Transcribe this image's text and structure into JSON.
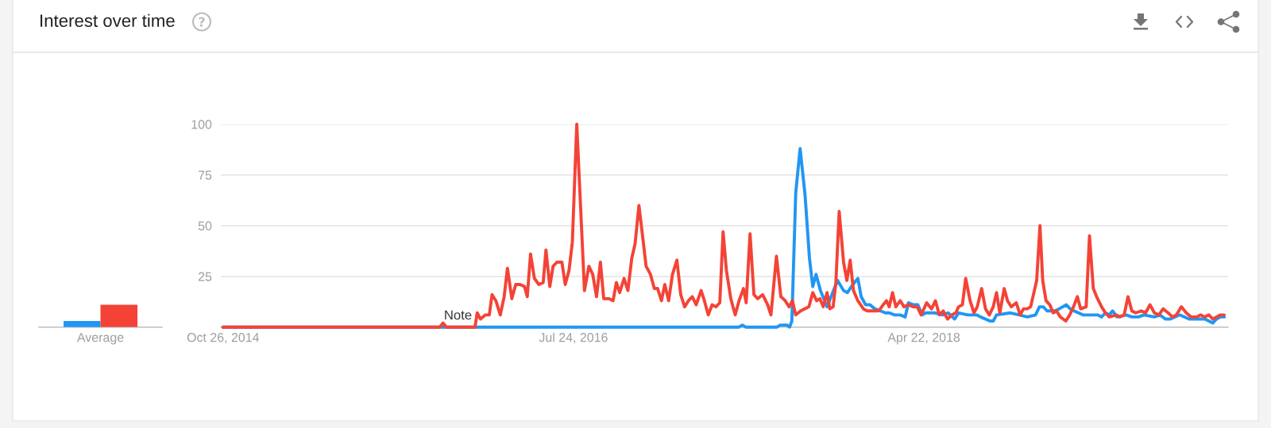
{
  "chart_data": [
    {
      "type": "bar",
      "title": "Interest over time",
      "categories": [
        "Average"
      ],
      "series": [
        {
          "color": "#2196f3",
          "values": [
            3
          ]
        },
        {
          "color": "#f44336",
          "values": [
            11
          ]
        }
      ],
      "ylim": [
        0,
        100
      ],
      "tick_labels": "x"
    },
    {
      "type": "line",
      "xlim": [
        "2014-10-22",
        "2019-10-27"
      ],
      "xticks": [
        {
          "value": "2014-10-26",
          "label": "Oct 26, 2014"
        },
        {
          "value": "2016-07-24",
          "label": "Jul 24, 2016"
        },
        {
          "value": "2018-04-22",
          "label": "Apr 22, 2018"
        }
      ],
      "ylim": [
        0,
        100
      ],
      "yticks": [
        25,
        50,
        75,
        100
      ],
      "grid": "y",
      "annotations": [
        {
          "text": "Note",
          "x": "2015-12-27",
          "y": 0
        }
      ],
      "series": [
        {
          "color": "#2196f3",
          "x": [
            "2014-10-26",
            "2017-05-21",
            "2017-05-27",
            "2017-06-02",
            "2017-07-29",
            "2017-08-04",
            "2017-08-16",
            "2017-08-21",
            "2017-08-25",
            "2017-09-01",
            "2017-09-09",
            "2017-09-18",
            "2017-09-26",
            "2017-10-02",
            "2017-10-08",
            "2017-10-16",
            "2017-10-28",
            "2017-11-16",
            "2017-11-27",
            "2017-12-04",
            "2017-12-14",
            "2017-12-23",
            "2017-12-29",
            "2018-01-06",
            "2018-01-14",
            "2018-01-23",
            "2018-02-02",
            "2018-02-11",
            "2018-02-18",
            "2018-02-28",
            "2018-03-10",
            "2018-03-19",
            "2018-03-25",
            "2018-04-03",
            "2018-04-11",
            "2018-04-19",
            "2018-04-25",
            "2018-05-12",
            "2018-05-26",
            "2018-06-05",
            "2018-06-17",
            "2018-06-24",
            "2018-07-11",
            "2018-07-27",
            "2018-08-03",
            "2018-08-20",
            "2018-08-26",
            "2018-09-01",
            "2018-09-26",
            "2018-10-13",
            "2018-10-27",
            "2018-11-11",
            "2018-11-18",
            "2018-11-25",
            "2018-12-02",
            "2018-12-16",
            "2018-12-24",
            "2019-01-06",
            "2019-01-13",
            "2019-01-20",
            "2019-02-05",
            "2019-03-04",
            "2019-03-11",
            "2019-03-18",
            "2019-03-25",
            "2019-03-31",
            "2019-04-08",
            "2019-04-25",
            "2019-05-05",
            "2019-05-17",
            "2019-05-27",
            "2019-06-15",
            "2019-06-25",
            "2019-07-05",
            "2019-07-14",
            "2019-07-31",
            "2019-08-17",
            "2019-09-15",
            "2019-09-22",
            "2019-09-29",
            "2019-10-06",
            "2019-10-13",
            "2019-10-20"
          ],
          "values": [
            0,
            0,
            1,
            0,
            0,
            1,
            1,
            0,
            3,
            66,
            88,
            65,
            34,
            20,
            26,
            18,
            10,
            23,
            18,
            17,
            21,
            24,
            15,
            11,
            11,
            9,
            8,
            7,
            7,
            6,
            6,
            5,
            12,
            11,
            11,
            6,
            7,
            7,
            6,
            7,
            4,
            7,
            6,
            6,
            5,
            3,
            3,
            6,
            7,
            6,
            5,
            6,
            10,
            10,
            8,
            8,
            9,
            11,
            9,
            8,
            6,
            6,
            5,
            7,
            6,
            8,
            5,
            6,
            5,
            5,
            6,
            5,
            6,
            4,
            4,
            6,
            4,
            4,
            3,
            2,
            4,
            5,
            5
          ]
        },
        {
          "color": "#f44336",
          "x": [
            "2014-10-26",
            "2015-11-24",
            "2015-11-30",
            "2015-12-06",
            "2016-01-27",
            "2016-01-31",
            "2016-02-06",
            "2016-02-15",
            "2016-02-22",
            "2016-02-27",
            "2016-03-05",
            "2016-03-13",
            "2016-03-20",
            "2016-03-26",
            "2016-04-03",
            "2016-04-10",
            "2016-04-18",
            "2016-04-26",
            "2016-05-01",
            "2016-05-07",
            "2016-05-14",
            "2016-05-22",
            "2016-05-30",
            "2016-06-04",
            "2016-06-11",
            "2016-06-17",
            "2016-06-24",
            "2016-07-03",
            "2016-07-09",
            "2016-07-16",
            "2016-07-22",
            "2016-07-30",
            "2016-08-13",
            "2016-08-21",
            "2016-08-28",
            "2016-09-04",
            "2016-09-11",
            "2016-09-17",
            "2016-09-27",
            "2016-10-04",
            "2016-10-10",
            "2016-10-16",
            "2016-10-24",
            "2016-10-31",
            "2016-11-07",
            "2016-11-13",
            "2016-11-20",
            "2016-11-27",
            "2016-12-03",
            "2016-12-11",
            "2016-12-18",
            "2016-12-24",
            "2016-12-31",
            "2017-01-06",
            "2017-01-13",
            "2017-01-20",
            "2017-01-28",
            "2017-02-04",
            "2017-02-11",
            "2017-02-18",
            "2017-02-25",
            "2017-03-04",
            "2017-03-13",
            "2017-03-19",
            "2017-03-26",
            "2017-04-02",
            "2017-04-09",
            "2017-04-16",
            "2017-04-22",
            "2017-04-28",
            "2017-05-06",
            "2017-05-14",
            "2017-05-21",
            "2017-05-29",
            "2017-06-03",
            "2017-06-10",
            "2017-06-17",
            "2017-06-24",
            "2017-07-03",
            "2017-07-12",
            "2017-07-18",
            "2017-07-28",
            "2017-08-05",
            "2017-08-13",
            "2017-08-20",
            "2017-08-26",
            "2017-09-01",
            "2017-09-10",
            "2017-09-17",
            "2017-09-25",
            "2017-10-02",
            "2017-10-09",
            "2017-10-15",
            "2017-10-21",
            "2017-10-28",
            "2017-11-02",
            "2017-11-08",
            "2017-11-13",
            "2017-11-19",
            "2017-11-27",
            "2017-12-03",
            "2017-12-09",
            "2017-12-15",
            "2017-12-23",
            "2018-01-02",
            "2018-01-09",
            "2018-01-16",
            "2018-01-30",
            "2018-02-07",
            "2018-02-13",
            "2018-02-18",
            "2018-02-24",
            "2018-03-02",
            "2018-03-10",
            "2018-03-17",
            "2018-03-24",
            "2018-04-03",
            "2018-04-10",
            "2018-04-17",
            "2018-04-27",
            "2018-05-06",
            "2018-05-13",
            "2018-05-20",
            "2018-05-27",
            "2018-06-04",
            "2018-06-12",
            "2018-06-19",
            "2018-06-24",
            "2018-07-01",
            "2018-07-07",
            "2018-07-15",
            "2018-07-22",
            "2018-07-28",
            "2018-08-05",
            "2018-08-12",
            "2018-08-19",
            "2018-08-26",
            "2018-09-01",
            "2018-09-07",
            "2018-09-15",
            "2018-09-21",
            "2018-09-28",
            "2018-10-07",
            "2018-10-14",
            "2018-10-20",
            "2018-10-27",
            "2018-11-02",
            "2018-11-08",
            "2018-11-13",
            "2018-11-19",
            "2018-11-24",
            "2018-11-30",
            "2018-12-07",
            "2018-12-13",
            "2018-12-19",
            "2018-12-26",
            "2019-01-05",
            "2019-01-12",
            "2019-01-19",
            "2019-01-26",
            "2019-02-01",
            "2019-02-11",
            "2019-02-17",
            "2019-02-24",
            "2019-03-02",
            "2019-03-11",
            "2019-03-18",
            "2019-03-25",
            "2019-04-07",
            "2019-04-13",
            "2019-04-21",
            "2019-04-28",
            "2019-05-05",
            "2019-05-12",
            "2019-05-22",
            "2019-05-30",
            "2019-06-07",
            "2019-06-15",
            "2019-06-23",
            "2019-07-01",
            "2019-07-10",
            "2019-07-18",
            "2019-07-25",
            "2019-08-03",
            "2019-08-12",
            "2019-08-21",
            "2019-08-31",
            "2019-09-07",
            "2019-09-14",
            "2019-09-22",
            "2019-09-29",
            "2019-10-06",
            "2019-10-13",
            "2019-10-20"
          ],
          "values": [
            0,
            0,
            2,
            0,
            0,
            7,
            4,
            6,
            6,
            16,
            13,
            6,
            15,
            29,
            14,
            21,
            21,
            20,
            15,
            36,
            24,
            21,
            22,
            38,
            20,
            30,
            32,
            32,
            21,
            28,
            42,
            100,
            18,
            30,
            26,
            15,
            32,
            14,
            14,
            13,
            22,
            17,
            24,
            18,
            34,
            41,
            60,
            44,
            30,
            26,
            19,
            19,
            13,
            21,
            13,
            26,
            33,
            16,
            10,
            13,
            15,
            11,
            18,
            13,
            6,
            11,
            10,
            12,
            47,
            28,
            14,
            6,
            13,
            19,
            12,
            46,
            16,
            14,
            16,
            11,
            6,
            35,
            15,
            13,
            10,
            13,
            6,
            8,
            9,
            10,
            17,
            13,
            14,
            10,
            17,
            9,
            10,
            22,
            57,
            32,
            23,
            33,
            18,
            13,
            9,
            8,
            8,
            8,
            11,
            13,
            10,
            17,
            10,
            13,
            10,
            11,
            10,
            10,
            6,
            12,
            9,
            13,
            6,
            8,
            4,
            6,
            7,
            10,
            11,
            24,
            13,
            7,
            10,
            19,
            9,
            6,
            10,
            17,
            7,
            19,
            13,
            10,
            12,
            6,
            9,
            9,
            10,
            17,
            23,
            50,
            23,
            13,
            11,
            7,
            8,
            5,
            3,
            6,
            10,
            15,
            9,
            10,
            45,
            19,
            15,
            10,
            7,
            5,
            6,
            5,
            6,
            15,
            8,
            7,
            8,
            7,
            11,
            7,
            6,
            9,
            7,
            5,
            6,
            10,
            7,
            5,
            5,
            6,
            5,
            6,
            4,
            5,
            6,
            6
          ]
        }
      ]
    }
  ]
}
